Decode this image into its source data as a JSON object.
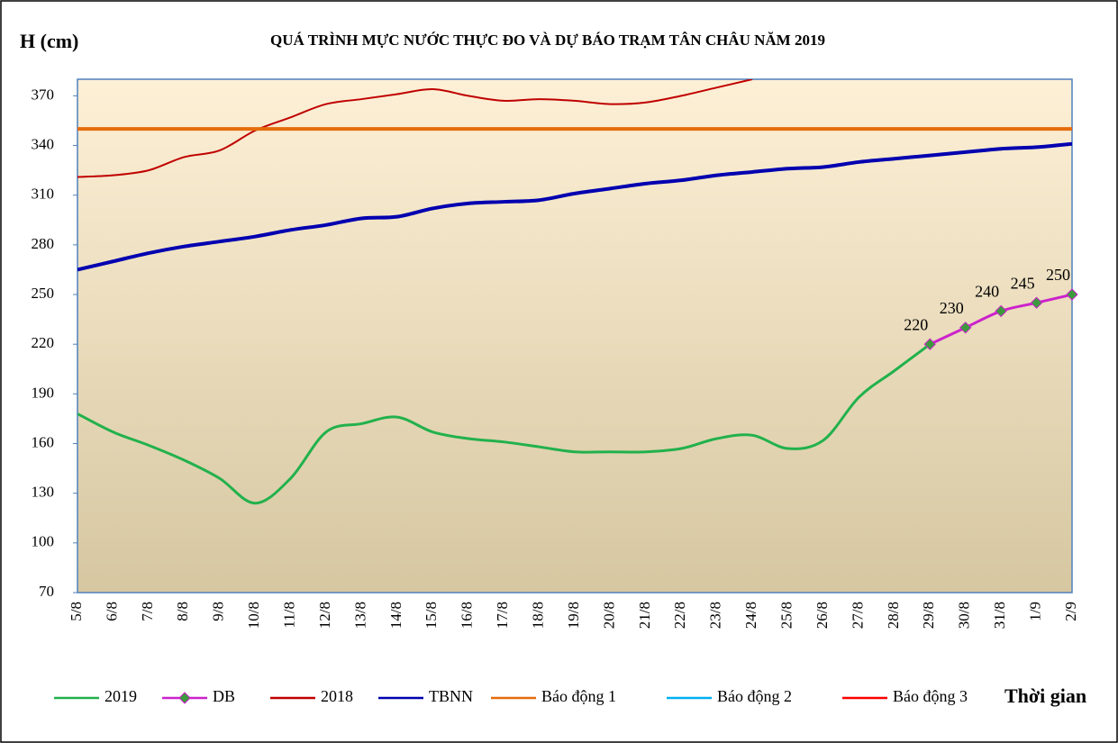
{
  "chart_data": {
    "type": "line",
    "title": "QUÁ TRÌNH MỰC NƯỚC THỰC ĐO VÀ DỰ BÁO TRẠM TÂN CHÂU NĂM 2019",
    "y_label": "H (cm)",
    "x_label": "Thời gian",
    "categories": [
      "5/8",
      "6/8",
      "7/8",
      "8/8",
      "9/8",
      "10/8",
      "11/8",
      "12/8",
      "13/8",
      "14/8",
      "15/8",
      "16/8",
      "17/8",
      "18/8",
      "19/8",
      "20/8",
      "21/8",
      "22/8",
      "23/8",
      "24/8",
      "25/8",
      "26/8",
      "27/8",
      "28/8",
      "29/8",
      "30/8",
      "31/8",
      "1/9",
      "2/9"
    ],
    "ylim": [
      70,
      380
    ],
    "yticks": [
      70,
      100,
      130,
      160,
      190,
      220,
      250,
      280,
      310,
      340,
      370
    ],
    "series": [
      {
        "name": "2019",
        "color": "#22b14c",
        "values": [
          178,
          167,
          159,
          150,
          139,
          124,
          139,
          167,
          172,
          176,
          167,
          163,
          161,
          158,
          155,
          155,
          155,
          157,
          163,
          165,
          157,
          162,
          188,
          204,
          220,
          null,
          null,
          null,
          null
        ]
      },
      {
        "name": "DB",
        "color": "#cc22cc",
        "marker": "diamond",
        "marker_color": "#3c9a3c",
        "data_labels": true,
        "values": [
          null,
          null,
          null,
          null,
          null,
          null,
          null,
          null,
          null,
          null,
          null,
          null,
          null,
          null,
          null,
          null,
          null,
          null,
          null,
          null,
          null,
          null,
          null,
          null,
          220,
          230,
          240,
          245,
          250
        ]
      },
      {
        "name": "2018",
        "color": "#c00000",
        "values": [
          321,
          322,
          325,
          333,
          337,
          349,
          357,
          365,
          368,
          371,
          374,
          370,
          367,
          368,
          367,
          365,
          366,
          370,
          375,
          380,
          null,
          null,
          null,
          null,
          null,
          null,
          null,
          null,
          null
        ]
      },
      {
        "name": "TBNN",
        "color": "#0000b0",
        "values": [
          265,
          270,
          275,
          279,
          282,
          285,
          289,
          292,
          296,
          297,
          302,
          305,
          306,
          307,
          311,
          314,
          317,
          319,
          322,
          324,
          326,
          327,
          330,
          332,
          334,
          336,
          338,
          339,
          341
        ]
      },
      {
        "name": "Báo động 1",
        "color": "#e46c0a",
        "values": [
          350,
          350,
          350,
          350,
          350,
          350,
          350,
          350,
          350,
          350,
          350,
          350,
          350,
          350,
          350,
          350,
          350,
          350,
          350,
          350,
          350,
          350,
          350,
          350,
          350,
          350,
          350,
          350,
          350
        ]
      },
      {
        "name": "Báo động 2",
        "color": "#00b0f0",
        "values": [
          null,
          null,
          null,
          null,
          null,
          null,
          null,
          null,
          null,
          null,
          null,
          null,
          null,
          null,
          null,
          null,
          null,
          null,
          null,
          null,
          null,
          null,
          null,
          null,
          null,
          null,
          null,
          null,
          null
        ]
      },
      {
        "name": "Báo động 3",
        "color": "#ff0000",
        "values": [
          null,
          null,
          null,
          null,
          null,
          null,
          null,
          null,
          null,
          null,
          null,
          null,
          null,
          null,
          null,
          null,
          null,
          null,
          null,
          null,
          null,
          null,
          null,
          null,
          null,
          null,
          null,
          null,
          null
        ]
      }
    ]
  }
}
